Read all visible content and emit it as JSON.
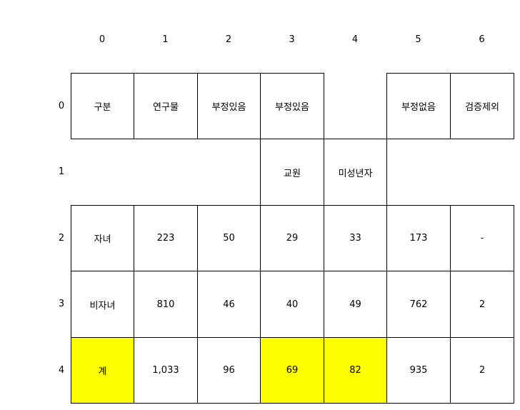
{
  "column_indices": [
    "0",
    "1",
    "2",
    "3",
    "4",
    "5",
    "6"
  ],
  "row_indices": [
    "0",
    "1",
    "2",
    "3",
    "4"
  ],
  "highlight_color": "#ffff00",
  "rows": [
    {
      "cells": [
        {
          "text": "구분",
          "bordered": true,
          "highlight": false
        },
        {
          "text": "연구물",
          "bordered": true,
          "highlight": false
        },
        {
          "text": "부정있음",
          "bordered": true,
          "highlight": false
        },
        {
          "text": "부정있음",
          "bordered": true,
          "highlight": false
        },
        {
          "text": "",
          "bordered": false,
          "highlight": false
        },
        {
          "text": "부정없음",
          "bordered": true,
          "highlight": false
        },
        {
          "text": "검증제외",
          "bordered": true,
          "highlight": false
        }
      ]
    },
    {
      "cells": [
        {
          "text": "",
          "bordered": false,
          "highlight": false
        },
        {
          "text": "",
          "bordered": false,
          "highlight": false
        },
        {
          "text": "",
          "bordered": false,
          "highlight": false
        },
        {
          "text": "교원",
          "bordered": true,
          "highlight": false
        },
        {
          "text": "미성년자",
          "bordered": true,
          "highlight": false
        },
        {
          "text": "",
          "bordered": false,
          "highlight": false
        },
        {
          "text": "",
          "bordered": false,
          "highlight": false
        }
      ]
    },
    {
      "cells": [
        {
          "text": "자녀",
          "bordered": true,
          "highlight": false
        },
        {
          "text": "223",
          "bordered": true,
          "highlight": false
        },
        {
          "text": "50",
          "bordered": true,
          "highlight": false
        },
        {
          "text": "29",
          "bordered": true,
          "highlight": false
        },
        {
          "text": "33",
          "bordered": true,
          "highlight": false
        },
        {
          "text": "173",
          "bordered": true,
          "highlight": false
        },
        {
          "text": "-",
          "bordered": true,
          "highlight": false
        }
      ]
    },
    {
      "cells": [
        {
          "text": "비자녀",
          "bordered": true,
          "highlight": false
        },
        {
          "text": "810",
          "bordered": true,
          "highlight": false
        },
        {
          "text": "46",
          "bordered": true,
          "highlight": false
        },
        {
          "text": "40",
          "bordered": true,
          "highlight": false
        },
        {
          "text": "49",
          "bordered": true,
          "highlight": false
        },
        {
          "text": "762",
          "bordered": true,
          "highlight": false
        },
        {
          "text": "2",
          "bordered": true,
          "highlight": false
        }
      ]
    },
    {
      "cells": [
        {
          "text": "계",
          "bordered": true,
          "highlight": true
        },
        {
          "text": "1,033",
          "bordered": true,
          "highlight": false
        },
        {
          "text": "96",
          "bordered": true,
          "highlight": false
        },
        {
          "text": "69",
          "bordered": true,
          "highlight": true
        },
        {
          "text": "82",
          "bordered": true,
          "highlight": true
        },
        {
          "text": "935",
          "bordered": true,
          "highlight": false
        },
        {
          "text": "2",
          "bordered": true,
          "highlight": false
        }
      ]
    }
  ]
}
